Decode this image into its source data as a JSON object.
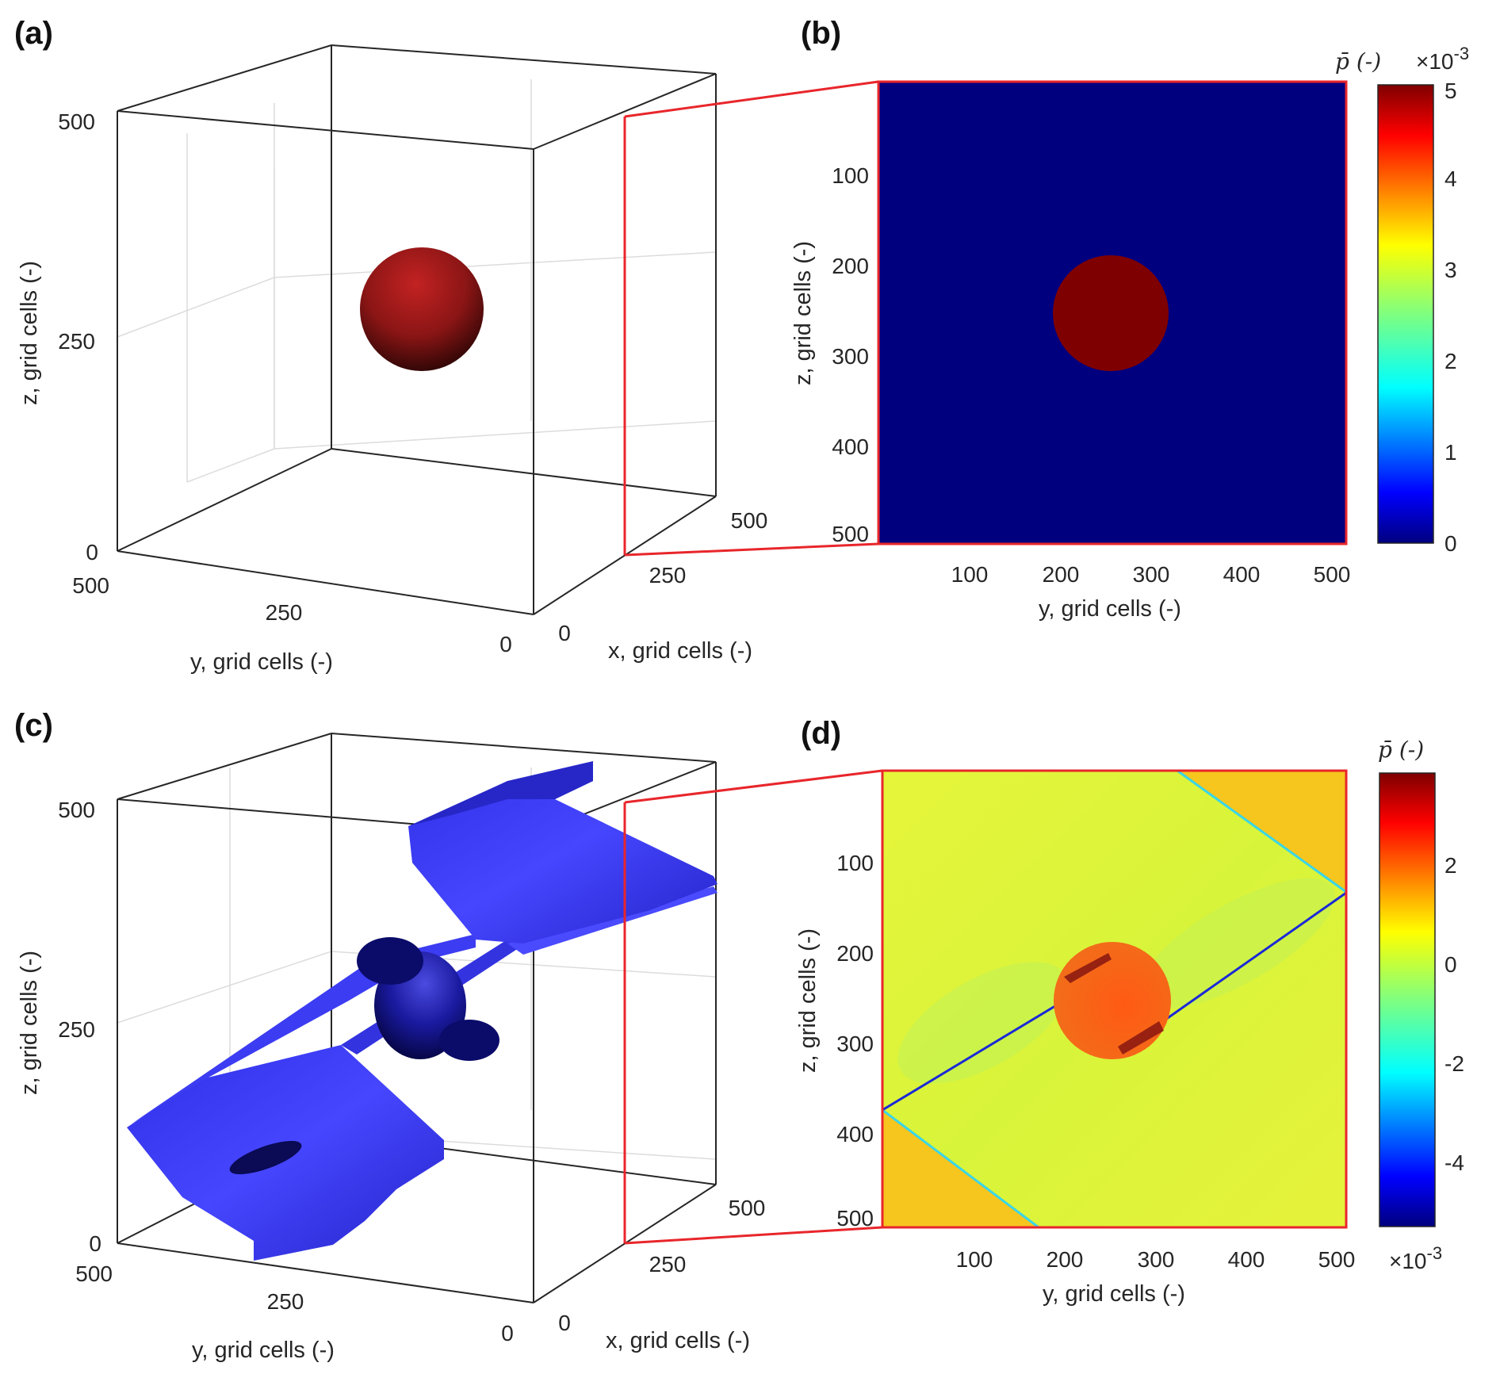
{
  "chart_data": [
    {
      "panel": "(a)",
      "type": "3d-isosurface",
      "xlabel": "x, grid cells (-)",
      "ylabel": "y, grid cells (-)",
      "zlabel": "z, grid cells (-)",
      "x_ticks": [
        "0",
        "250",
        "500"
      ],
      "y_ticks": [
        "500",
        "250",
        "0"
      ],
      "z_ticks": [
        "0",
        "250",
        "500"
      ],
      "xlim": [
        0,
        512
      ],
      "ylim": [
        0,
        512
      ],
      "zlim": [
        0,
        512
      ],
      "grid": true,
      "surfaces": [
        {
          "shape": "sphere",
          "center": [
            256,
            256,
            256
          ],
          "radius": 64,
          "color": "#8b1a1a"
        }
      ]
    },
    {
      "panel": "(b)",
      "type": "heatmap",
      "xlabel": "y, grid cells (-)",
      "ylabel": "z, grid cells (-)",
      "x_ticks": [
        "100",
        "200",
        "300",
        "400",
        "500"
      ],
      "y_ticks": [
        "100",
        "200",
        "300",
        "400",
        "500"
      ],
      "xlim": [
        1,
        512
      ],
      "ylim": [
        1,
        512
      ],
      "colorbar": {
        "label": "p̄ (-)",
        "exponent": "×10",
        "exponent_power": "-3",
        "ticks": [
          "0",
          "1",
          "2",
          "3",
          "4",
          "5"
        ],
        "range": [
          0,
          5
        ],
        "colormap": "jet"
      },
      "background_value": 0,
      "features": [
        {
          "shape": "disk",
          "center": [
            256,
            256
          ],
          "radius": 64,
          "value": 5
        }
      ],
      "frame_color": "#e8262b"
    },
    {
      "panel": "(c)",
      "type": "3d-isosurface",
      "xlabel": "x, grid cells (-)",
      "ylabel": "y, grid cells (-)",
      "zlabel": "z, grid cells (-)",
      "x_ticks": [
        "0",
        "250",
        "500"
      ],
      "y_ticks": [
        "500",
        "250",
        "0"
      ],
      "z_ticks": [
        "0",
        "250",
        "500"
      ],
      "xlim": [
        0,
        512
      ],
      "ylim": [
        0,
        512
      ],
      "zlim": [
        0,
        512
      ],
      "grid": true,
      "surfaces": [
        {
          "shape": "sheets",
          "color": "#3a3af0"
        },
        {
          "shape": "sphere",
          "center": [
            256,
            256,
            256
          ],
          "radius": 64,
          "color": "#0a0a70"
        }
      ]
    },
    {
      "panel": "(d)",
      "type": "heatmap",
      "xlabel": "y, grid cells (-)",
      "ylabel": "z, grid cells (-)",
      "x_ticks": [
        "100",
        "200",
        "300",
        "400",
        "500"
      ],
      "y_ticks": [
        "100",
        "200",
        "300",
        "400",
        "500"
      ],
      "xlim": [
        1,
        512
      ],
      "ylim": [
        1,
        512
      ],
      "colorbar": {
        "label": "p̄ (-)",
        "exponent": "×10",
        "exponent_power": "-3",
        "ticks": [
          "2",
          "0",
          "-2",
          "-4"
        ],
        "range": [
          -5.6,
          3.9
        ],
        "colormap": "jet"
      },
      "features": [
        {
          "shape": "disk",
          "center": [
            256,
            256
          ],
          "radius": 64,
          "value": 2.2
        },
        {
          "shape": "line",
          "from": [
            1,
            373
          ],
          "to": [
            512,
            136
          ],
          "value": -5.2
        }
      ],
      "frame_color": "#e8262b"
    }
  ]
}
